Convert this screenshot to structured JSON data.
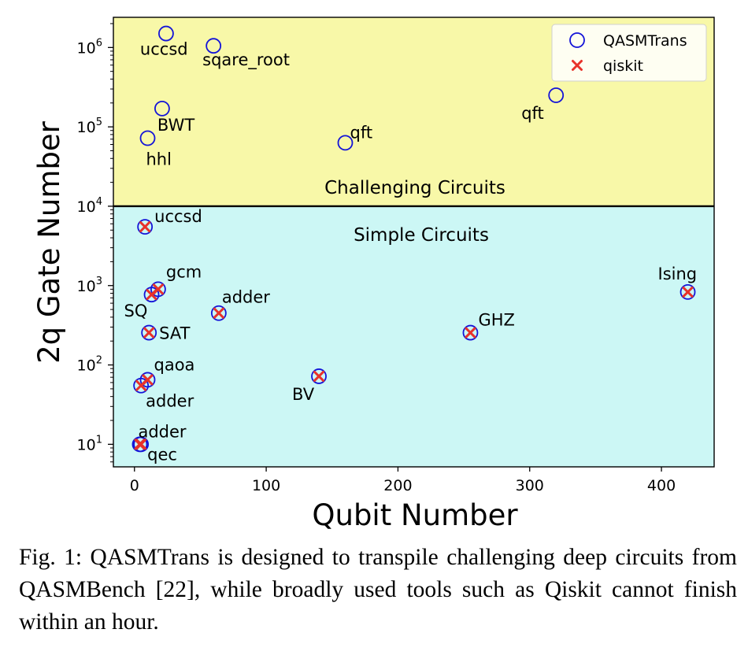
{
  "chart_data": {
    "type": "scatter",
    "xlabel": "Qubit Number",
    "ylabel": "2q Gate Number",
    "xscale": "linear",
    "yscale": "log",
    "xlim": [
      -16,
      440
    ],
    "ylim": [
      5.2,
      2400000
    ],
    "x_ticks": [
      0,
      100,
      200,
      300,
      400
    ],
    "x_tick_labels": [
      "0",
      "100",
      "200",
      "300",
      "400"
    ],
    "y_ticks": [
      10,
      100,
      1000,
      10000,
      100000,
      1000000
    ],
    "y_tick_labels": [
      {
        "base": "10",
        "exp": "1"
      },
      {
        "base": "10",
        "exp": "2"
      },
      {
        "base": "10",
        "exp": "3"
      },
      {
        "base": "10",
        "exp": "4"
      },
      {
        "base": "10",
        "exp": "5"
      },
      {
        "base": "10",
        "exp": "6"
      }
    ],
    "threshold": 10000,
    "regions": [
      {
        "label": "Challenging Circuits",
        "from": 10000,
        "to": 2400000,
        "color": "#f8f8a8"
      },
      {
        "label": "Simple Circuits",
        "from": 5.2,
        "to": 10000,
        "color": "#ccf7f5"
      }
    ],
    "legend": {
      "position": "top-right",
      "entries": [
        {
          "name": "QASMTrans",
          "marker": "circle",
          "color": "#1414d8"
        },
        {
          "name": "qiskit",
          "marker": "x",
          "color": "#e8322a"
        }
      ]
    },
    "series": [
      {
        "name": "QASMTrans",
        "marker": "circle",
        "color": "#1414d8",
        "points": [
          {
            "x": 24,
            "y": 1500000,
            "label": "uccsd"
          },
          {
            "x": 60,
            "y": 1050000,
            "label": "sqare_root"
          },
          {
            "x": 21,
            "y": 170000,
            "label": "BWT"
          },
          {
            "x": 10,
            "y": 72000,
            "label": "hhl"
          },
          {
            "x": 160,
            "y": 63000,
            "label": "qft"
          },
          {
            "x": 320,
            "y": 250000,
            "label": "qft"
          },
          {
            "x": 8,
            "y": 5500,
            "label": "uccsd"
          },
          {
            "x": 18,
            "y": 900,
            "label": "gcm"
          },
          {
            "x": 13,
            "y": 770,
            "label": "SQ"
          },
          {
            "x": 64,
            "y": 450,
            "label": "adder"
          },
          {
            "x": 11,
            "y": 255,
            "label": "SAT"
          },
          {
            "x": 255,
            "y": 255,
            "label": "GHZ"
          },
          {
            "x": 420,
            "y": 830,
            "label": "Ising"
          },
          {
            "x": 10,
            "y": 65,
            "label": "qaoa"
          },
          {
            "x": 5,
            "y": 55,
            "label": "adder"
          },
          {
            "x": 140,
            "y": 72,
            "label": "BV"
          },
          {
            "x": 4,
            "y": 10,
            "label": "adder"
          },
          {
            "x": 5,
            "y": 10,
            "label": "qec"
          }
        ]
      },
      {
        "name": "qiskit",
        "marker": "x",
        "color": "#e8322a",
        "points": [
          {
            "x": 8,
            "y": 5500
          },
          {
            "x": 18,
            "y": 900
          },
          {
            "x": 13,
            "y": 770
          },
          {
            "x": 64,
            "y": 450
          },
          {
            "x": 11,
            "y": 255
          },
          {
            "x": 255,
            "y": 255
          },
          {
            "x": 420,
            "y": 830
          },
          {
            "x": 10,
            "y": 65
          },
          {
            "x": 5,
            "y": 55
          },
          {
            "x": 140,
            "y": 72
          },
          {
            "x": 4,
            "y": 10
          },
          {
            "x": 5,
            "y": 10
          }
        ]
      }
    ]
  },
  "caption": "Fig. 1: QASMTrans is designed to transpile challenging deep circuits from QASMBench [22], while broadly used tools such as Qiskit cannot finish within an hour."
}
